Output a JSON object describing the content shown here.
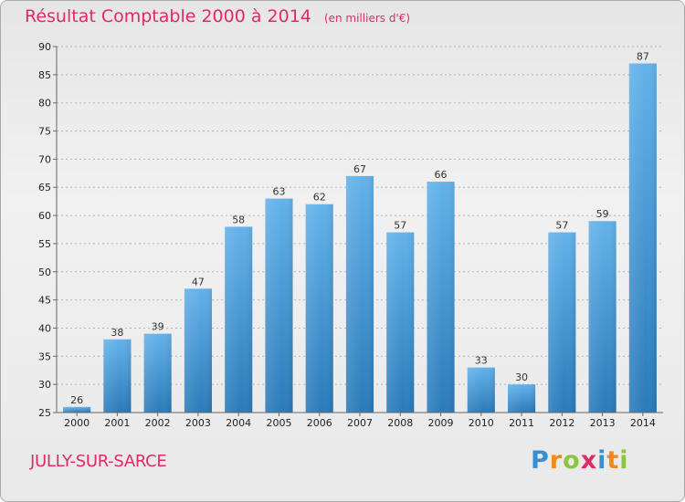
{
  "chart_data": {
    "type": "bar",
    "title": "Résultat Comptable 2000 à 2014",
    "unit": "(en milliers d'€)",
    "categories": [
      "2000",
      "2001",
      "2002",
      "2003",
      "2004",
      "2005",
      "2006",
      "2007",
      "2008",
      "2009",
      "2010",
      "2011",
      "2012",
      "2013",
      "2014"
    ],
    "values": [
      26,
      38,
      39,
      47,
      58,
      63,
      62,
      67,
      57,
      66,
      33,
      30,
      57,
      59,
      87
    ],
    "ylim": [
      25,
      90
    ],
    "yticks": [
      25,
      30,
      35,
      40,
      45,
      50,
      55,
      60,
      65,
      70,
      75,
      80,
      85,
      90
    ],
    "xlabel": "",
    "ylabel": "",
    "grid": true
  },
  "location": {
    "name": "JULLY-SUR-SARCE"
  },
  "logo": {
    "letters": [
      "P",
      "r",
      "o",
      "x",
      "i",
      "t",
      "i"
    ]
  },
  "colors": {
    "bar_top": "#63b2ea",
    "bar_bottom": "#2a7ab9",
    "title": "#e02a66"
  }
}
